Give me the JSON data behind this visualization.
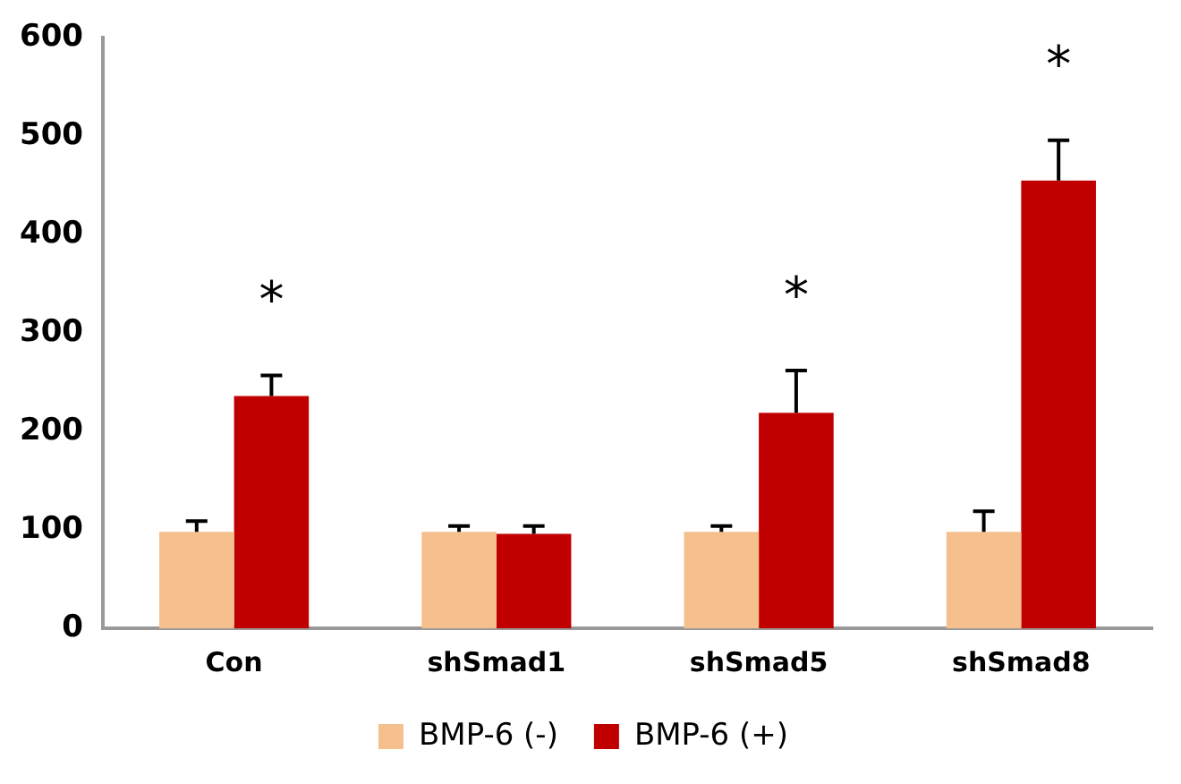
{
  "chart_data": {
    "type": "bar",
    "categories": [
      "Con",
      "shSmad1",
      "shSmad5",
      "shSmad8"
    ],
    "series": [
      {
        "name": "BMP-6 (-)",
        "color": "#f5c08e",
        "values": [
          98,
          98,
          98,
          98
        ],
        "errors": [
          [
            98,
            109
          ],
          [
            98,
            104
          ],
          [
            98,
            104
          ],
          [
            98,
            119
          ]
        ]
      },
      {
        "name": "BMP-6 (+)",
        "color": "#c00000",
        "values": [
          236,
          96,
          219,
          455
        ],
        "errors": [
          [
            236,
            257
          ],
          [
            96,
            104
          ],
          [
            219,
            262
          ],
          [
            455,
            496
          ]
        ]
      }
    ],
    "ylim": [
      0,
      600
    ],
    "yticks": [
      0,
      100,
      200,
      300,
      400,
      500,
      600
    ],
    "grid": false,
    "legend": "bottom",
    "annotations": [
      {
        "text": "*",
        "x": "Con",
        "y": 236
      },
      {
        "text": "*",
        "x": "shSmad5",
        "y": 219
      },
      {
        "text": "*",
        "x": "shSmad8",
        "y": 455
      }
    ]
  }
}
